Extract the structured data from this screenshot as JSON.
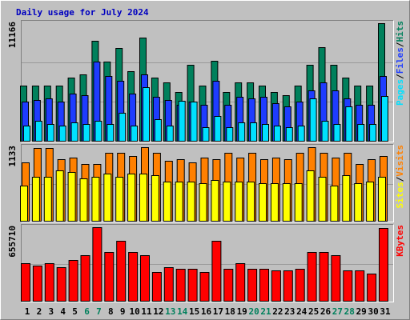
{
  "title": "Daily usage for July 2024",
  "legend_separator": "/",
  "chart_data": [
    {
      "type": "bar",
      "categories": [
        "1",
        "2",
        "3",
        "4",
        "5",
        "6",
        "7",
        "8",
        "9",
        "10",
        "11",
        "12",
        "13",
        "14",
        "15",
        "16",
        "17",
        "18",
        "19",
        "20",
        "21",
        "22",
        "23",
        "24",
        "25",
        "26",
        "27",
        "28",
        "29",
        "30",
        "31"
      ],
      "weekend_categories": [
        "6",
        "7",
        "13",
        "14",
        "20",
        "21",
        "27",
        "28"
      ],
      "weekend_color": "#00805C",
      "series": [
        {
          "name": "Hits",
          "color": "#00805C",
          "values": [
            5241,
            5241,
            5241,
            5241,
            6001,
            6305,
            9495,
            7520,
            8811,
            6609,
            9799,
            6001,
            5545,
            4634,
            7216,
            5241,
            7596,
            4634,
            5545,
            5545,
            5241,
            4634,
            4330,
            5241,
            7216,
            8887,
            7216,
            6001,
            5241,
            5241,
            11166
          ]
        },
        {
          "name": "Files",
          "color": "#1E3CFF",
          "values": [
            3722,
            3874,
            4026,
            3722,
            4482,
            4330,
            7520,
            6153,
            5697,
            4482,
            6305,
            4178,
            3874,
            3418,
            3722,
            3418,
            5697,
            3418,
            4178,
            4026,
            4178,
            3570,
            3266,
            3722,
            4785,
            5545,
            4785,
            4026,
            3418,
            3418,
            6153
          ]
        },
        {
          "name": "Pages",
          "color": "#00E0FF",
          "values": [
            1443,
            1899,
            1595,
            1443,
            1747,
            1595,
            1899,
            1595,
            2659,
            1443,
            5089,
            2051,
            1443,
            3798,
            3722,
            1291,
            2355,
            1291,
            1747,
            1747,
            1595,
            1443,
            1291,
            1443,
            4026,
            1899,
            1595,
            3266,
            1595,
            1595,
            4254
          ]
        }
      ],
      "ylim": [
        0,
        11166
      ],
      "yticks": [
        11166
      ],
      "grid_values": [
        3722,
        7444
      ]
    },
    {
      "type": "bar",
      "series": [
        {
          "name": "Visits",
          "color": "#FF8000",
          "values": [
            896,
            1121,
            1121,
            946,
            971,
            872,
            872,
            1046,
            1046,
            996,
            1133,
            1046,
            921,
            946,
            896,
            971,
            946,
            1046,
            971,
            1046,
            946,
            971,
            946,
            1046,
            1133,
            1046,
            971,
            1046,
            872,
            946,
            996
          ]
        },
        {
          "name": "Sites",
          "color": "#FFFF00",
          "values": [
            548,
            672,
            672,
            772,
            747,
            647,
            672,
            722,
            672,
            722,
            722,
            697,
            598,
            598,
            598,
            573,
            623,
            598,
            598,
            598,
            573,
            573,
            573,
            573,
            772,
            672,
            548,
            697,
            573,
            598,
            672
          ]
        }
      ],
      "ylim": [
        0,
        1133
      ],
      "yticks": [
        1133
      ],
      "grid_values": [
        566
      ]
    },
    {
      "type": "bar",
      "series": [
        {
          "name": "KBytes",
          "color": "#FF0000",
          "values": [
            331476,
            317064,
            331476,
            302652,
            360300,
            403536,
            655710,
            432360,
            533244,
            432360,
            403536,
            259416,
            302652,
            288240,
            288240,
            259416,
            533244,
            288240,
            331476,
            288240,
            288240,
            273828,
            273828,
            288240,
            432360,
            432360,
            403536,
            273828,
            273828,
            245004,
            648540
          ]
        }
      ],
      "ylim": [
        0,
        655710
      ],
      "yticks": [
        655710
      ],
      "grid_values": [
        327855
      ]
    }
  ]
}
